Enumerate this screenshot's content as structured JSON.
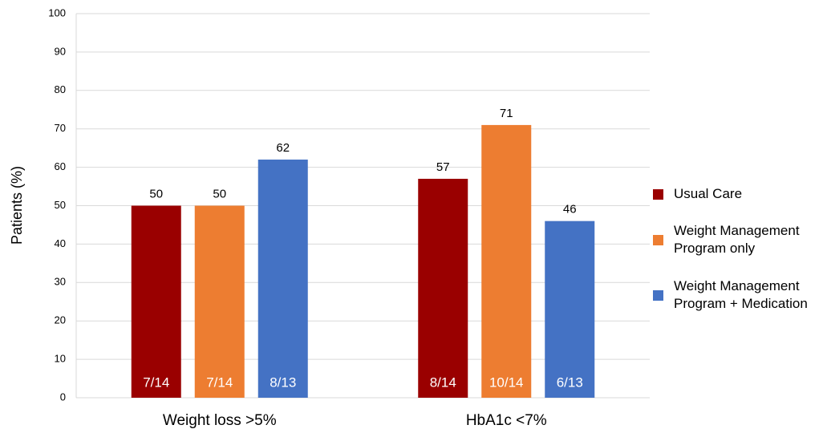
{
  "chart_data": {
    "type": "bar",
    "y_label": "Patients (%)",
    "categories": [
      "Weight loss >5%",
      "HbA1c <7%"
    ],
    "series": [
      {
        "name": "Usual Care",
        "color": "#9a0000",
        "values": [
          50,
          57
        ],
        "bar_labels": [
          "7/14",
          "8/14"
        ]
      },
      {
        "name": "Weight Management Program only",
        "color": "#ed7d31",
        "values": [
          50,
          71
        ],
        "bar_labels": [
          "7/14",
          "10/14"
        ]
      },
      {
        "name": "Weight Management Program + Medication",
        "color": "#4472c4",
        "values": [
          62,
          46
        ],
        "bar_labels": [
          "8/13",
          "6/13"
        ]
      }
    ],
    "ylim": [
      0,
      100
    ],
    "yticks": [
      0,
      10,
      20,
      30,
      40,
      50,
      60,
      70,
      80,
      90,
      100
    ],
    "grid": true,
    "legend": "right"
  }
}
